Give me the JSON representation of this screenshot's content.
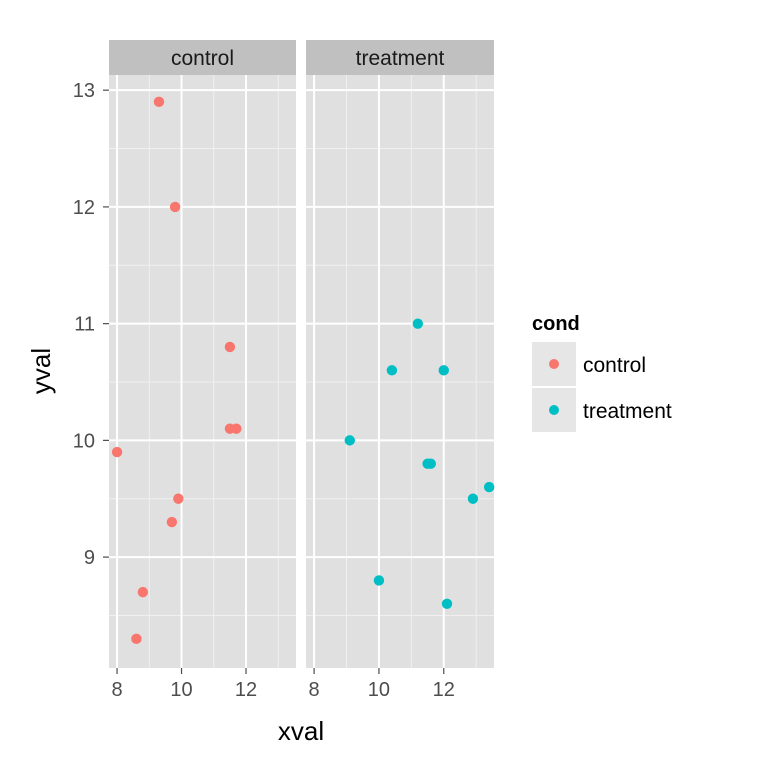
{
  "chart_data": {
    "type": "scatter",
    "facet_by": "cond",
    "xlabel": "xval",
    "ylabel": "yval",
    "xlim": [
      7.75,
      13.55
    ],
    "ylim": [
      8.05,
      13.13
    ],
    "x_ticks": [
      8,
      10,
      12
    ],
    "y_ticks": [
      9,
      10,
      11,
      12,
      13
    ],
    "panels": [
      {
        "label": "control",
        "color": "#F8766D",
        "points": [
          {
            "x": 8.0,
            "y": 9.9
          },
          {
            "x": 8.6,
            "y": 8.3
          },
          {
            "x": 8.8,
            "y": 8.7
          },
          {
            "x": 9.3,
            "y": 12.9
          },
          {
            "x": 9.7,
            "y": 9.3
          },
          {
            "x": 9.8,
            "y": 12.0
          },
          {
            "x": 9.9,
            "y": 9.5
          },
          {
            "x": 11.5,
            "y": 10.8
          },
          {
            "x": 11.5,
            "y": 10.1
          },
          {
            "x": 11.7,
            "y": 10.1
          }
        ]
      },
      {
        "label": "treatment",
        "color": "#00BFC4",
        "points": [
          {
            "x": 9.1,
            "y": 10.0
          },
          {
            "x": 10.0,
            "y": 8.8
          },
          {
            "x": 10.4,
            "y": 10.6
          },
          {
            "x": 11.2,
            "y": 11.0
          },
          {
            "x": 11.5,
            "y": 9.8
          },
          {
            "x": 11.6,
            "y": 9.8
          },
          {
            "x": 12.0,
            "y": 10.6
          },
          {
            "x": 12.1,
            "y": 8.6
          },
          {
            "x": 12.9,
            "y": 9.5
          },
          {
            "x": 13.4,
            "y": 9.6
          }
        ]
      }
    ],
    "legend": {
      "title": "cond",
      "position": "right",
      "entries": [
        {
          "label": "control",
          "color": "#F8766D"
        },
        {
          "label": "treatment",
          "color": "#00BFC4"
        }
      ]
    }
  }
}
